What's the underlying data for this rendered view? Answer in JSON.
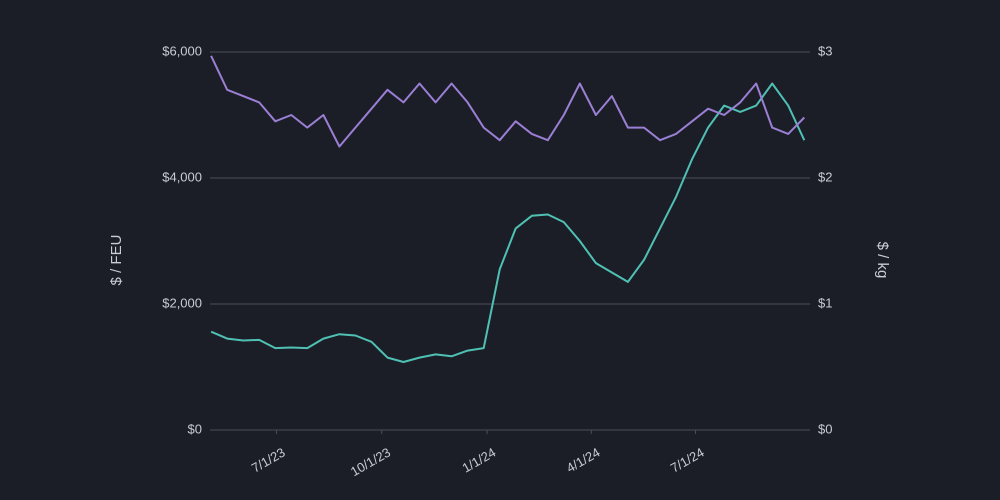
{
  "chart_data": {
    "type": "line",
    "y_label": "$ / FEU",
    "y2_label": "$ / kg",
    "x": [
      "2023-05-05",
      "2023-05-19",
      "2023-06-02",
      "2023-06-16",
      "2023-06-30",
      "2023-07-14",
      "2023-07-28",
      "2023-08-11",
      "2023-08-25",
      "2023-09-08",
      "2023-09-22",
      "2023-10-06",
      "2023-10-20",
      "2023-11-03",
      "2023-11-17",
      "2023-12-01",
      "2023-12-15",
      "2023-12-29",
      "2024-01-12",
      "2024-01-26",
      "2024-02-09",
      "2024-02-23",
      "2024-03-08",
      "2024-03-22",
      "2024-04-05",
      "2024-04-19",
      "2024-05-03",
      "2024-05-17",
      "2024-05-31",
      "2024-06-14",
      "2024-06-28",
      "2024-07-12",
      "2024-07-26",
      "2024-08-09",
      "2024-08-23",
      "2024-09-06",
      "2024-09-20",
      "2024-10-04"
    ],
    "series": [
      {
        "color": "#4fc1b4",
        "axis": "y",
        "values": [
          1560,
          1450,
          1420,
          1430,
          1300,
          1310,
          1300,
          1450,
          1520,
          1500,
          1400,
          1150,
          1080,
          1150,
          1200,
          1170,
          1260,
          1300,
          2550,
          3200,
          3400,
          3420,
          3300,
          3000,
          2650,
          2500,
          2350,
          2700,
          3200,
          3700,
          4300,
          4800,
          5150,
          5050,
          5150,
          5500,
          5150,
          4600
        ]
      },
      {
        "color": "#9b7fd4",
        "axis": "y2",
        "values": [
          2.97,
          2.7,
          2.65,
          2.6,
          2.45,
          2.5,
          2.4,
          2.5,
          2.25,
          2.4,
          2.55,
          2.7,
          2.6,
          2.75,
          2.6,
          2.75,
          2.6,
          2.4,
          2.3,
          2.45,
          2.35,
          2.3,
          2.5,
          2.75,
          2.5,
          2.65,
          2.4,
          2.4,
          2.3,
          2.35,
          2.45,
          2.55,
          2.5,
          2.6,
          2.75,
          2.4,
          2.35,
          2.48
        ]
      }
    ],
    "xlim": [
      "2023-05-04",
      "2024-10-09"
    ],
    "xticks": [
      {
        "value": "2023-07-01",
        "label": "7/1/23"
      },
      {
        "value": "2023-10-01",
        "label": "10/1/23"
      },
      {
        "value": "2024-01-01",
        "label": "1/1/24"
      },
      {
        "value": "2024-04-01",
        "label": "4/1/24"
      },
      {
        "value": "2024-07-01",
        "label": "7/1/24"
      }
    ],
    "ylim": [
      0,
      6000
    ],
    "yticks": [
      {
        "value": 0,
        "label": "$0"
      },
      {
        "value": 2000,
        "label": "$2,000"
      },
      {
        "value": 4000,
        "label": "$4,000"
      },
      {
        "value": 6000,
        "label": "$6,000"
      }
    ],
    "y2lim": [
      0,
      3
    ],
    "y2ticks": [
      {
        "value": 0,
        "label": "$0"
      },
      {
        "value": 1,
        "label": "$1"
      },
      {
        "value": 2,
        "label": "$2"
      },
      {
        "value": 3,
        "label": "$3"
      }
    ],
    "grid": true
  }
}
